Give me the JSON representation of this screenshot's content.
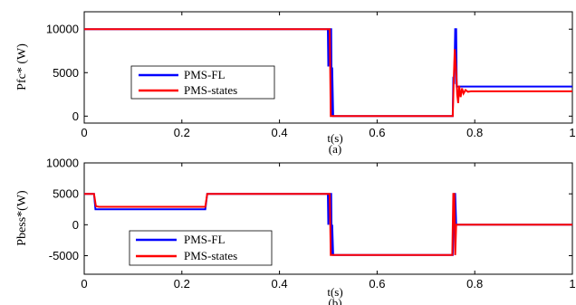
{
  "chart_data": [
    {
      "type": "line",
      "panel_label": "(a)",
      "xlabel": "t(s)",
      "ylabel": "Pfc* (W)",
      "xlim": [
        0,
        1
      ],
      "ylim": [
        -800,
        12000
      ],
      "xticks": [
        0,
        0.2,
        0.4,
        0.6,
        0.8,
        1
      ],
      "xtick_labels": [
        "0",
        "0.2",
        "0.4",
        "0.6",
        "0.8",
        "1"
      ],
      "yticks": [
        0,
        5000,
        10000
      ],
      "ytick_labels": [
        "0",
        "5000",
        "10000"
      ],
      "legend_position": "center-left",
      "series": [
        {
          "name": "PMS-FL",
          "color": "#0000ff",
          "points": [
            [
              0,
              10000
            ],
            [
              0.499,
              10000
            ],
            [
              0.5,
              5700
            ],
            [
              0.502,
              10000
            ],
            [
              0.506,
              10000
            ],
            [
              0.507,
              0
            ],
            [
              0.508,
              5600
            ],
            [
              0.51,
              0
            ],
            [
              0.755,
              0
            ],
            [
              0.756,
              4200
            ],
            [
              0.758,
              4000
            ],
            [
              0.76,
              10000
            ],
            [
              0.762,
              10000
            ],
            [
              0.763,
              3400
            ],
            [
              1,
              3400
            ]
          ]
        },
        {
          "name": "PMS-states",
          "color": "#ff0000",
          "points": [
            [
              0,
              10000
            ],
            [
              0.503,
              10000
            ],
            [
              0.505,
              0
            ],
            [
              0.755,
              0
            ],
            [
              0.757,
              4100
            ],
            [
              0.759,
              7700
            ],
            [
              0.76,
              6900
            ],
            [
              0.762,
              5100
            ],
            [
              0.764,
              2500
            ],
            [
              0.766,
              1500
            ],
            [
              0.768,
              3500
            ],
            [
              0.771,
              2200
            ],
            [
              0.774,
              3200
            ],
            [
              0.777,
              2600
            ],
            [
              0.781,
              3000
            ],
            [
              0.786,
              2800
            ],
            [
              0.792,
              2850
            ],
            [
              1,
              2850
            ]
          ]
        }
      ]
    },
    {
      "type": "line",
      "panel_label": "(b)",
      "xlabel": "t(s)",
      "ylabel": "Pbess*(W)",
      "xlim": [
        0,
        1
      ],
      "ylim": [
        -8000,
        10000
      ],
      "xticks": [
        0,
        0.2,
        0.4,
        0.6,
        0.8,
        1
      ],
      "xtick_labels": [
        "0",
        "0.2",
        "0.4",
        "0.6",
        "0.8",
        "1"
      ],
      "yticks": [
        -5000,
        0,
        5000,
        10000
      ],
      "ytick_labels": [
        "-5000",
        "0",
        "5000",
        "10000"
      ],
      "legend_position": "bottom-left",
      "series": [
        {
          "name": "PMS-FL",
          "color": "#0000ff",
          "points": [
            [
              0,
              5000
            ],
            [
              0.02,
              5000
            ],
            [
              0.023,
              2500
            ],
            [
              0.248,
              2500
            ],
            [
              0.252,
              5000
            ],
            [
              0.499,
              5000
            ],
            [
              0.5,
              0
            ],
            [
              0.502,
              5000
            ],
            [
              0.506,
              5000
            ],
            [
              0.507,
              -4900
            ],
            [
              0.508,
              0
            ],
            [
              0.51,
              -4900
            ],
            [
              0.755,
              -4900
            ],
            [
              0.758,
              5000
            ],
            [
              0.76,
              5000
            ],
            [
              0.762,
              0
            ],
            [
              1,
              0
            ]
          ]
        },
        {
          "name": "PMS-states",
          "color": "#ff0000",
          "points": [
            [
              0,
              5000
            ],
            [
              0.02,
              5000
            ],
            [
              0.024,
              3000
            ],
            [
              0.03,
              2900
            ],
            [
              0.248,
              2900
            ],
            [
              0.252,
              5000
            ],
            [
              0.503,
              5000
            ],
            [
              0.505,
              -4900
            ],
            [
              0.754,
              -4900
            ],
            [
              0.756,
              5000
            ],
            [
              0.758,
              5000
            ],
            [
              0.76,
              -4900
            ],
            [
              0.762,
              0
            ],
            [
              1,
              0
            ]
          ]
        }
      ]
    }
  ]
}
